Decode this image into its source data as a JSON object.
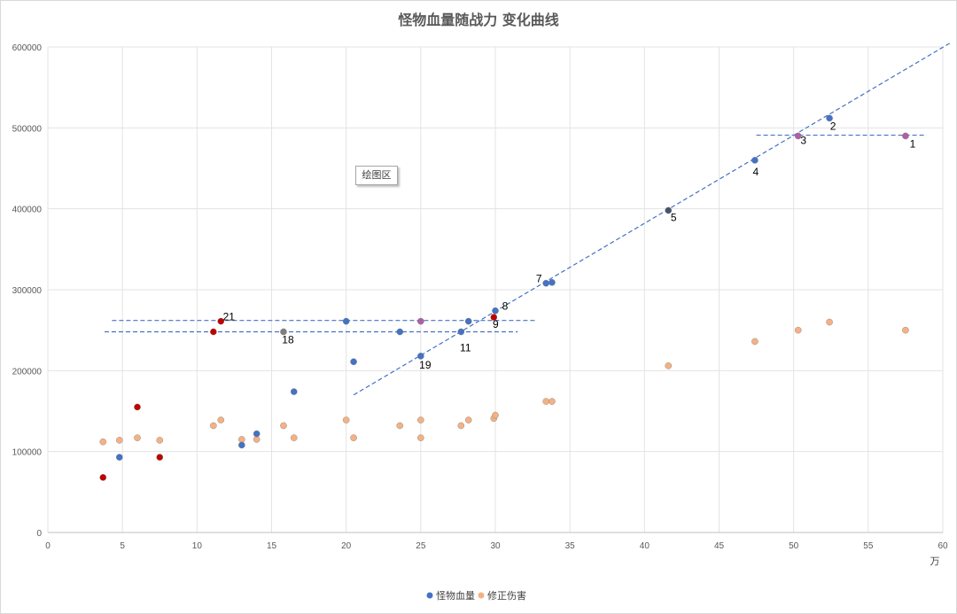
{
  "chart_data": {
    "type": "scatter",
    "title": "怪物血量随战力 变化曲线",
    "x_unit": "万",
    "xlim": [
      0,
      60
    ],
    "ylim": [
      0,
      600000
    ],
    "x_ticks": [
      0,
      5,
      10,
      15,
      20,
      25,
      30,
      35,
      40,
      45,
      50,
      55,
      60
    ],
    "y_ticks": [
      0,
      100000,
      200000,
      300000,
      400000,
      500000,
      600000
    ],
    "grid": true,
    "legend_position": "bottom",
    "plot_area_label": "绘图区",
    "series": [
      {
        "name": "怪物血量",
        "color": "#4472c4",
        "points": [
          {
            "x": 57.5,
            "y": 490000,
            "label": "1",
            "color": "#b05fa6"
          },
          {
            "x": 52.4,
            "y": 512000,
            "label": "2"
          },
          {
            "x": 50.3,
            "y": 490000,
            "label": "3",
            "color": "#b05fa6"
          },
          {
            "x": 47.4,
            "y": 460000,
            "label": "4"
          },
          {
            "x": 41.6,
            "y": 398000,
            "label": "5",
            "color": "#44546a"
          },
          {
            "x": 33.4,
            "y": 308000,
            "label": "7"
          },
          {
            "x": 33.8,
            "y": 309000
          },
          {
            "x": 30.0,
            "y": 274000,
            "label": "8"
          },
          {
            "x": 29.9,
            "y": 266000,
            "label": "9",
            "color": "#c00000"
          },
          {
            "x": 28.2,
            "y": 261000
          },
          {
            "x": 27.7,
            "y": 248000,
            "label": "11"
          },
          {
            "x": 25.0,
            "y": 261000,
            "color": "#b05fa6"
          },
          {
            "x": 25.0,
            "y": 218000,
            "label": "19"
          },
          {
            "x": 23.6,
            "y": 248000
          },
          {
            "x": 20.5,
            "y": 211000
          },
          {
            "x": 20.0,
            "y": 261000
          },
          {
            "x": 16.5,
            "y": 174000
          },
          {
            "x": 15.8,
            "y": 248000,
            "label": "18",
            "color": "#7f7f7f"
          },
          {
            "x": 14.0,
            "y": 122000
          },
          {
            "x": 13.0,
            "y": 108000
          },
          {
            "x": 11.6,
            "y": 261000,
            "label": "21",
            "color": "#c00000"
          },
          {
            "x": 11.1,
            "y": 248000,
            "color": "#c00000"
          },
          {
            "x": 7.5,
            "y": 93000,
            "color": "#c00000"
          },
          {
            "x": 6.0,
            "y": 155000,
            "color": "#c00000"
          },
          {
            "x": 4.8,
            "y": 93000
          },
          {
            "x": 3.7,
            "y": 68000,
            "color": "#c00000"
          }
        ]
      },
      {
        "name": "修正伤害",
        "color": "#f4b183",
        "points": [
          {
            "x": 3.7,
            "y": 112000
          },
          {
            "x": 4.8,
            "y": 114000
          },
          {
            "x": 6.0,
            "y": 117000
          },
          {
            "x": 7.5,
            "y": 114000
          },
          {
            "x": 11.1,
            "y": 132000
          },
          {
            "x": 11.6,
            "y": 139000
          },
          {
            "x": 13.0,
            "y": 115000
          },
          {
            "x": 14.0,
            "y": 115000
          },
          {
            "x": 15.8,
            "y": 132000
          },
          {
            "x": 16.5,
            "y": 117000
          },
          {
            "x": 20.0,
            "y": 139000
          },
          {
            "x": 20.5,
            "y": 117000
          },
          {
            "x": 23.6,
            "y": 132000
          },
          {
            "x": 25.0,
            "y": 139000
          },
          {
            "x": 25.0,
            "y": 117000
          },
          {
            "x": 27.7,
            "y": 132000
          },
          {
            "x": 28.2,
            "y": 139000
          },
          {
            "x": 29.9,
            "y": 141000
          },
          {
            "x": 30.0,
            "y": 145000
          },
          {
            "x": 33.4,
            "y": 162000
          },
          {
            "x": 33.8,
            "y": 162000
          },
          {
            "x": 41.6,
            "y": 206000
          },
          {
            "x": 47.4,
            "y": 236000
          },
          {
            "x": 50.3,
            "y": 250000
          },
          {
            "x": 52.4,
            "y": 260000
          },
          {
            "x": 57.5,
            "y": 250000
          }
        ]
      }
    ],
    "reference_lines": [
      {
        "style": "dashed",
        "color": "#4472c4",
        "x1": 20.5,
        "y1": 170000,
        "x2": 60.5,
        "y2": 605000
      },
      {
        "style": "dashed",
        "color": "#4472c4",
        "x1": 47.5,
        "y1": 491000,
        "x2": 58.8,
        "y2": 491000
      },
      {
        "style": "dashed",
        "color": "#4472c4",
        "x1": 4.3,
        "y1": 262000,
        "x2": 32.7,
        "y2": 262000
      },
      {
        "style": "dashed",
        "color": "#4472c4",
        "x1": 3.8,
        "y1": 248000,
        "x2": 31.5,
        "y2": 248000
      }
    ]
  }
}
